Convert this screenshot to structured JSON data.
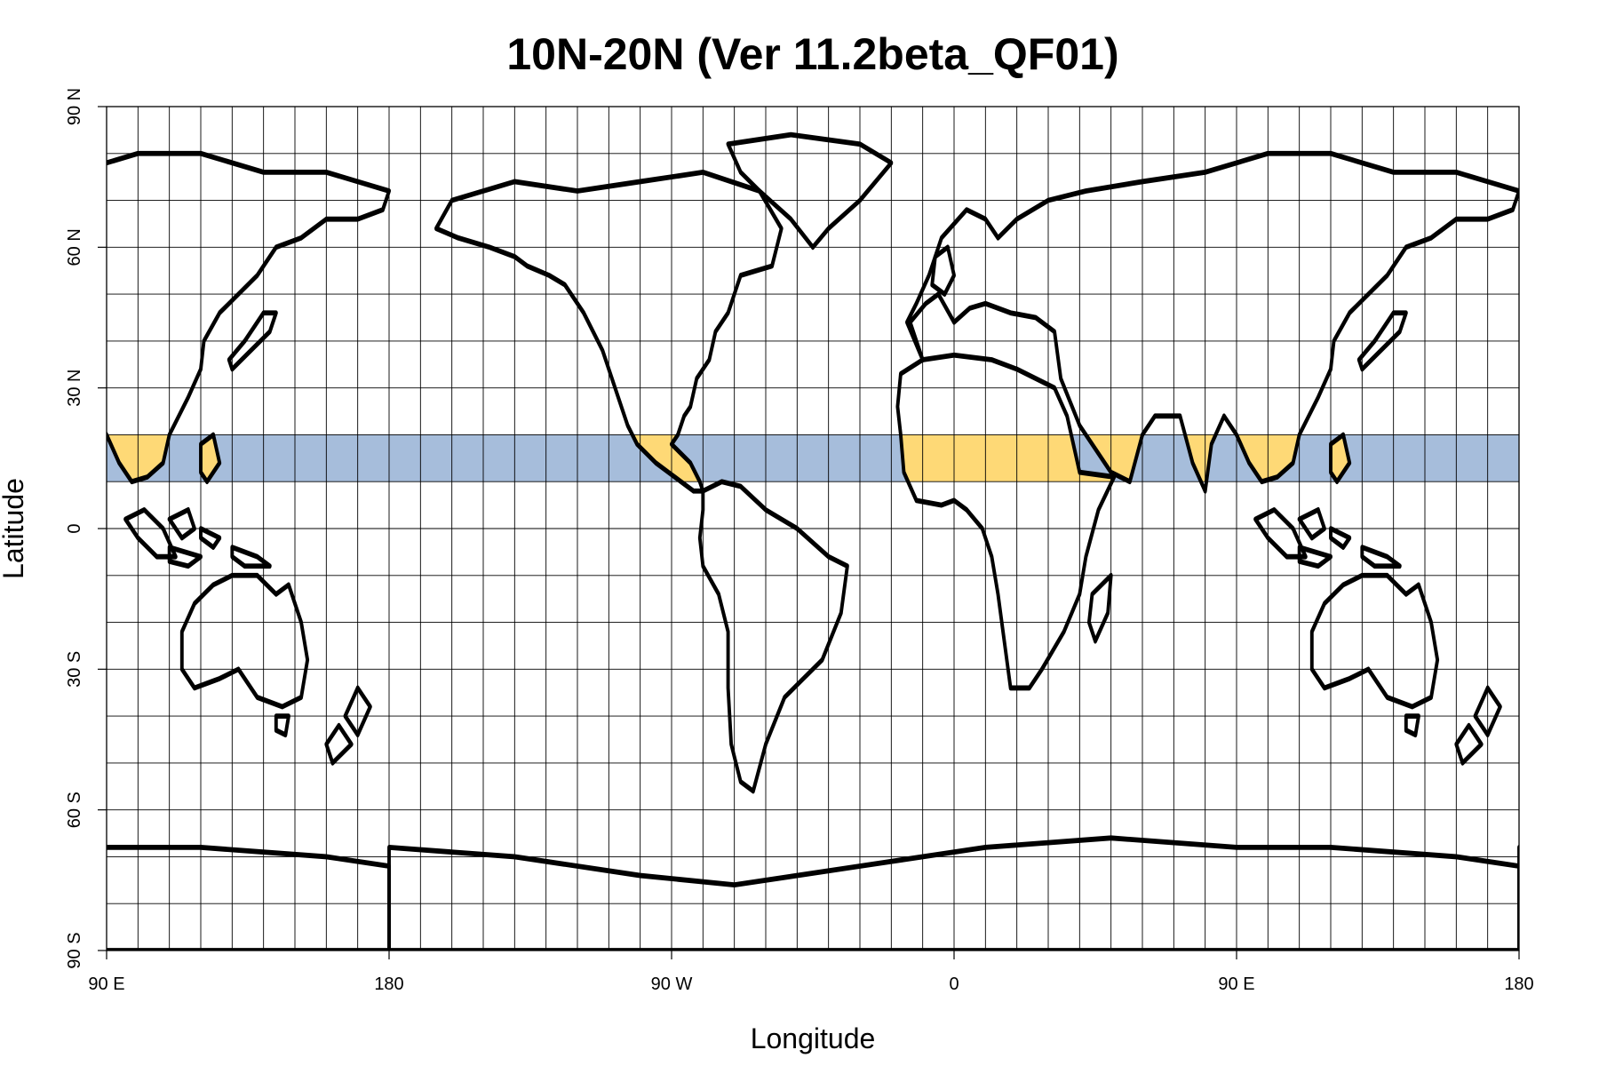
{
  "title": "10N-20N (Ver 11.2beta_QF01)",
  "axes": {
    "xlabel": "Longitude",
    "ylabel": "Latitude",
    "xticks": [
      {
        "lon": 90,
        "label": "90 E"
      },
      {
        "lon": 180,
        "label": "180"
      },
      {
        "lon": 270,
        "label": "90 W"
      },
      {
        "lon": 360,
        "label": "0"
      },
      {
        "lon": 450,
        "label": "90 E"
      },
      {
        "lon": 540,
        "label": "180"
      }
    ],
    "yticks": [
      {
        "lat": 90,
        "label": "90 N"
      },
      {
        "lat": 60,
        "label": "60 N"
      },
      {
        "lat": 30,
        "label": "30 N"
      },
      {
        "lat": 0,
        "label": "0"
      },
      {
        "lat": -30,
        "label": "30 S"
      },
      {
        "lat": -60,
        "label": "60 S"
      },
      {
        "lat": -90,
        "label": "90 S"
      }
    ],
    "lon_range": [
      90,
      540
    ],
    "lat_range": [
      -90,
      90
    ],
    "grid": true,
    "grid_step_lon_deg": 10,
    "grid_step_lat_deg": 10
  },
  "highlight_band": {
    "lat_min": 10,
    "lat_max": 20,
    "ocean_color": "#a6bddb",
    "land_color": "#fed976"
  },
  "colors": {
    "coastline": "#000000",
    "grid": "#000000",
    "background": "#ffffff"
  }
}
